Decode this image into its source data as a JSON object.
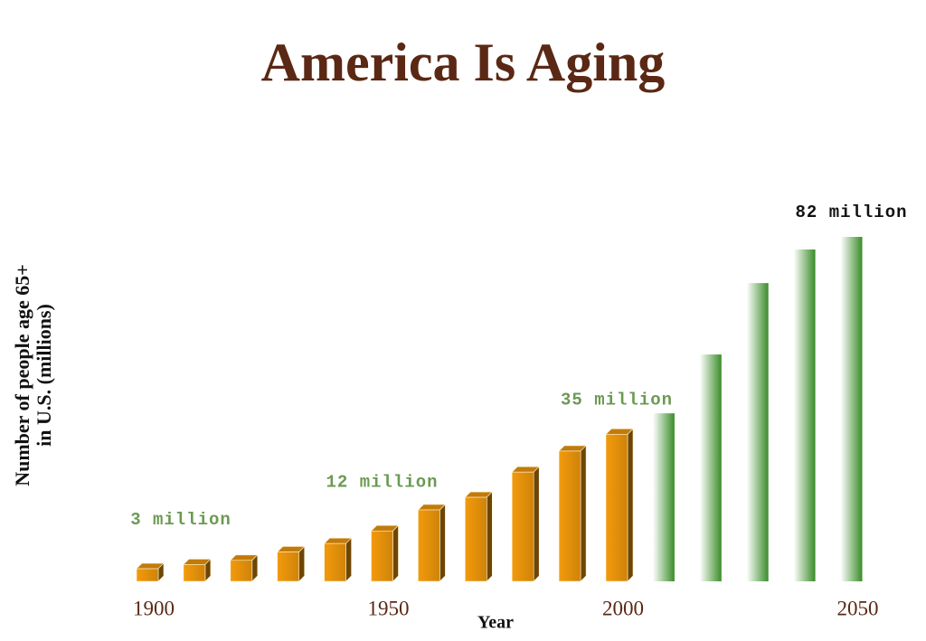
{
  "chart_data": {
    "type": "bar",
    "title": "America Is Aging",
    "y_label": [
      "Number of people age 65+",
      "in U.S. (millions)"
    ],
    "x_label": "Year",
    "categories": [
      "1900",
      null,
      null,
      null,
      null,
      "1950",
      null,
      null,
      null,
      null,
      "2000",
      null,
      null,
      null,
      null,
      "2050"
    ],
    "values": [
      3,
      4,
      5,
      7,
      9,
      12,
      17,
      20,
      26,
      31,
      35,
      40,
      54,
      71,
      79,
      82
    ],
    "value_labels": [
      "3 million",
      null,
      null,
      null,
      null,
      "12 million",
      null,
      null,
      null,
      null,
      "35 million",
      null,
      null,
      null,
      null,
      "82 million"
    ],
    "colors": [
      "#f39a0c",
      "#f39a0c",
      "#f39a0c",
      "#f39a0c",
      "#f39a0c",
      "#f39a0c",
      "#f39a0c",
      "#f39a0c",
      "#f39a0c",
      "#f39a0c",
      "#f39a0c",
      "#3a8c28",
      "#3a8c28",
      "#3a8c28",
      "#3a8c28",
      "#3a8c28"
    ],
    "label_colors": [
      "#6b9a52",
      null,
      null,
      null,
      null,
      "#6b9a52",
      null,
      null,
      null,
      null,
      "#6b9a52",
      null,
      null,
      null,
      null,
      "#111111"
    ]
  }
}
